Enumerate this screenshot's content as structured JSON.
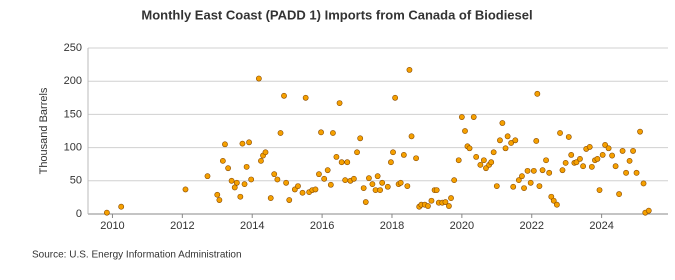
{
  "chart_data": {
    "type": "scatter",
    "title": "Monthly East Coast (PADD 1) Imports from Canada of Biodiesel",
    "y_label": "Thousand Barrels",
    "source": "Source: U.S. Energy Information Administration",
    "color": "#f5a000",
    "grid": true,
    "xlim": [
      2009.3,
      2025.9
    ],
    "xticks": [
      2010,
      2012,
      2014,
      2016,
      2018,
      2020,
      2022,
      2024
    ],
    "ylim": [
      0,
      250
    ],
    "yticks": [
      0,
      50,
      100,
      150,
      200,
      250
    ],
    "x": [
      2009.84,
      2010.25,
      2012.09,
      2012.72,
      2013.0,
      2013.06,
      2013.16,
      2013.22,
      2013.31,
      2013.41,
      2013.5,
      2013.56,
      2013.66,
      2013.72,
      2013.78,
      2013.84,
      2013.91,
      2013.97,
      2014.19,
      2014.25,
      2014.31,
      2014.38,
      2014.53,
      2014.63,
      2014.72,
      2014.81,
      2014.91,
      2014.97,
      2015.06,
      2015.22,
      2015.31,
      2015.44,
      2015.53,
      2015.63,
      2015.72,
      2015.81,
      2015.91,
      2015.97,
      2016.06,
      2016.16,
      2016.25,
      2016.31,
      2016.41,
      2016.5,
      2016.56,
      2016.66,
      2016.72,
      2016.81,
      2016.91,
      2017.0,
      2017.09,
      2017.19,
      2017.25,
      2017.34,
      2017.44,
      2017.53,
      2017.59,
      2017.66,
      2017.72,
      2017.88,
      2017.97,
      2018.03,
      2018.09,
      2018.19,
      2018.25,
      2018.34,
      2018.44,
      2018.5,
      2018.56,
      2018.69,
      2018.78,
      2018.84,
      2018.94,
      2019.03,
      2019.13,
      2019.22,
      2019.28,
      2019.34,
      2019.44,
      2019.53,
      2019.63,
      2019.69,
      2019.78,
      2019.91,
      2020.0,
      2020.09,
      2020.16,
      2020.22,
      2020.34,
      2020.41,
      2020.53,
      2020.63,
      2020.69,
      2020.78,
      2020.84,
      2020.91,
      2021.0,
      2021.09,
      2021.16,
      2021.25,
      2021.31,
      2021.41,
      2021.47,
      2021.53,
      2021.63,
      2021.72,
      2021.78,
      2021.88,
      2021.97,
      2022.06,
      2022.13,
      2022.16,
      2022.22,
      2022.31,
      2022.41,
      2022.5,
      2022.56,
      2022.63,
      2022.72,
      2022.81,
      2022.88,
      2022.97,
      2023.06,
      2023.13,
      2023.22,
      2023.28,
      2023.38,
      2023.47,
      2023.56,
      2023.66,
      2023.72,
      2023.81,
      2023.88,
      2023.94,
      2024.03,
      2024.1,
      2024.2,
      2024.3,
      2024.4,
      2024.5,
      2024.6,
      2024.7,
      2024.8,
      2024.9,
      2025.0,
      2025.1,
      2025.2,
      2025.25,
      2025.35
    ],
    "values": [
      2,
      11,
      37,
      57,
      29,
      21,
      80,
      105,
      69,
      50,
      40,
      47,
      26,
      106,
      45,
      71,
      108,
      52,
      204,
      80,
      88,
      93,
      24,
      60,
      52,
      122,
      178,
      47,
      21,
      37,
      42,
      32,
      175,
      33,
      36,
      37,
      60,
      123,
      53,
      66,
      44,
      122,
      86,
      167,
      78,
      51,
      78,
      50,
      53,
      93,
      114,
      39,
      18,
      54,
      45,
      36,
      57,
      36,
      47,
      41,
      78,
      93,
      175,
      45,
      47,
      89,
      42,
      217,
      117,
      84,
      11,
      14,
      14,
      12,
      20,
      36,
      36,
      17,
      17,
      18,
      12,
      24,
      51,
      81,
      146,
      125,
      102,
      99,
      146,
      86,
      74,
      81,
      69,
      74,
      78,
      93,
      42,
      111,
      137,
      99,
      117,
      107,
      41,
      111,
      51,
      57,
      39,
      65,
      47,
      65,
      110,
      181,
      42,
      66,
      81,
      62,
      26,
      20,
      14,
      122,
      66,
      77,
      116,
      89,
      77,
      78,
      83,
      72,
      98,
      101,
      71,
      81,
      83,
      36,
      89,
      104,
      99,
      88,
      72,
      30,
      95,
      62,
      80,
      95,
      62,
      124,
      46,
      2,
      5
    ]
  }
}
